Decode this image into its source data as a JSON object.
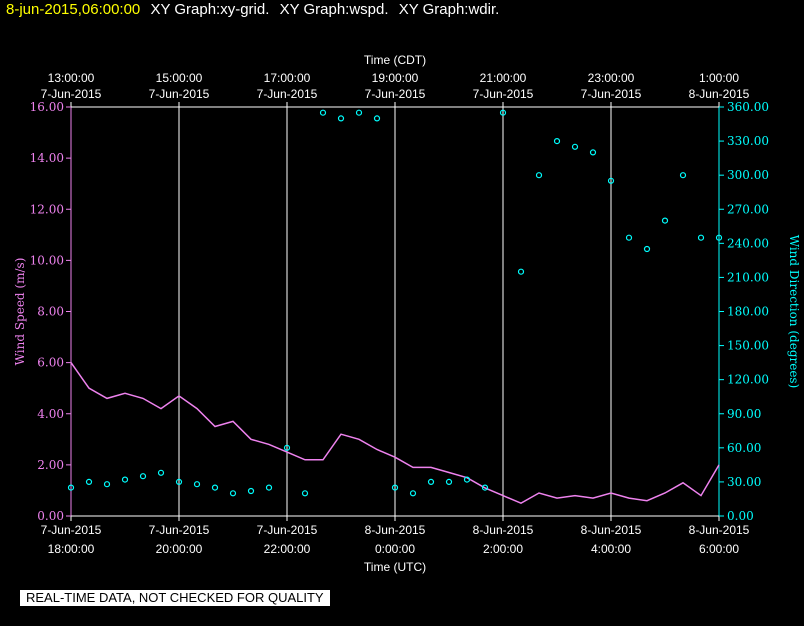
{
  "header": {
    "date_time": "8-jun-2015,06:00:00",
    "graphs": [
      "XY Graph:xy-grid.",
      "XY Graph:wspd.",
      "XY Graph:wdir."
    ]
  },
  "disclaimer": "REAL-TIME DATA, NOT CHECKED FOR QUALITY",
  "colors": {
    "speed": "#ee82ee",
    "direction": "#00ffff",
    "grid": "#ffffff",
    "background": "#000000",
    "title": "#ffff00"
  },
  "chart_data": {
    "type": "line",
    "top_axis": {
      "label": "Time (CDT)",
      "ticks": [
        {
          "time": "13:00:00",
          "date": "7-Jun-2015"
        },
        {
          "time": "15:00:00",
          "date": "7-Jun-2015"
        },
        {
          "time": "17:00:00",
          "date": "7-Jun-2015"
        },
        {
          "time": "19:00:00",
          "date": "7-Jun-2015"
        },
        {
          "time": "21:00:00",
          "date": "7-Jun-2015"
        },
        {
          "time": "23:00:00",
          "date": "7-Jun-2015"
        },
        {
          "time": "1:00:00",
          "date": "8-Jun-2015"
        }
      ]
    },
    "bottom_axis": {
      "label": "Time (UTC)",
      "ticks": [
        {
          "date": "7-Jun-2015",
          "time": "18:00:00"
        },
        {
          "date": "7-Jun-2015",
          "time": "20:00:00"
        },
        {
          "date": "7-Jun-2015",
          "time": "22:00:00"
        },
        {
          "date": "8-Jun-2015",
          "time": "0:00:00"
        },
        {
          "date": "8-Jun-2015",
          "time": "2:00:00"
        },
        {
          "date": "8-Jun-2015",
          "time": "4:00:00"
        },
        {
          "date": "8-Jun-2015",
          "time": "6:00:00"
        }
      ],
      "range_utc": [
        "2015-06-07 18:00",
        "2015-06-08 06:00"
      ]
    },
    "left_axis": {
      "label": "Wind Speed (m/s)",
      "ticks": [
        "0.00",
        "2.00",
        "4.00",
        "6.00",
        "8.00",
        "10.00",
        "12.00",
        "14.00",
        "16.00"
      ],
      "ylim": [
        0,
        16
      ]
    },
    "right_axis": {
      "label": "Wind Direction (degrees)",
      "ticks": [
        "0.00",
        "30.00",
        "60.00",
        "90.00",
        "120.00",
        "150.00",
        "180.00",
        "210.00",
        "240.00",
        "270.00",
        "300.00",
        "330.00",
        "360.00"
      ],
      "ylim": [
        0,
        360
      ]
    },
    "grid": "vertical lines at each 2-hour tick",
    "series": [
      {
        "name": "wspd",
        "style": "line",
        "axis": "left",
        "x": [
          "2015-06-07 18:00",
          "18:20",
          "18:40",
          "19:00",
          "19:20",
          "19:40",
          "20:00",
          "20:20",
          "20:40",
          "21:00",
          "21:20",
          "21:40",
          "22:00",
          "22:20",
          "22:40",
          "23:00",
          "23:20",
          "23:40",
          "2015-06-08 00:00",
          "00:20",
          "00:40",
          "01:00",
          "01:20",
          "01:40",
          "02:00",
          "02:20",
          "02:40",
          "03:00",
          "03:20",
          "03:40",
          "04:00",
          "04:20",
          "04:40",
          "05:00",
          "05:20",
          "05:40",
          "06:00"
        ],
        "values": [
          6.0,
          5.0,
          4.6,
          4.8,
          4.6,
          4.2,
          4.7,
          4.2,
          3.5,
          3.7,
          3.0,
          2.8,
          2.5,
          2.2,
          2.2,
          3.2,
          3.0,
          2.6,
          2.3,
          1.9,
          1.9,
          1.7,
          1.5,
          1.1,
          0.8,
          0.5,
          0.9,
          0.7,
          0.8,
          0.7,
          0.9,
          0.7,
          0.6,
          0.9,
          1.3,
          0.8,
          2.0
        ]
      },
      {
        "name": "wdir",
        "style": "scatter",
        "axis": "right",
        "x": [
          "2015-06-07 18:00",
          "18:20",
          "18:40",
          "19:00",
          "19:20",
          "19:40",
          "20:00",
          "20:20",
          "20:40",
          "21:00",
          "21:20",
          "21:40",
          "22:00",
          "22:20",
          "22:40",
          "23:00",
          "23:20",
          "23:40",
          "2015-06-08 00:00",
          "00:20",
          "00:40",
          "01:00",
          "01:20",
          "01:40",
          "02:00",
          "02:20",
          "02:40",
          "03:00",
          "03:20",
          "03:40",
          "04:00",
          "04:20",
          "04:40",
          "05:00",
          "05:20",
          "05:40",
          "06:00"
        ],
        "values": [
          25,
          30,
          28,
          32,
          35,
          38,
          30,
          28,
          25,
          20,
          22,
          25,
          60,
          20,
          355,
          350,
          355,
          350,
          25,
          20,
          30,
          30,
          32,
          25,
          355,
          215,
          300,
          330,
          325,
          320,
          295,
          245,
          235,
          260,
          300,
          245,
          245
        ]
      }
    ]
  }
}
